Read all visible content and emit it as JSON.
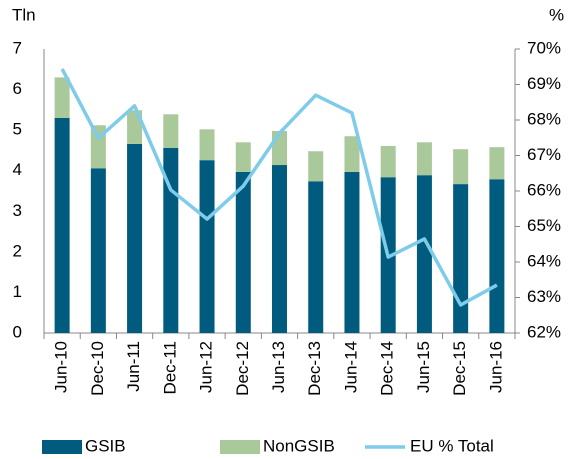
{
  "chart_data": {
    "type": "bar",
    "stacked": true,
    "y_label": "Tln",
    "y2_label": "%",
    "categories": [
      "Jun-10",
      "Dec-10",
      "Jun-11",
      "Dec-11",
      "Jun-12",
      "Dec-12",
      "Jun-13",
      "Dec-13",
      "Jun-14",
      "Dec-14",
      "Jun-15",
      "Dec-15",
      "Jun-16"
    ],
    "series": [
      {
        "name": "GSIB",
        "type": "bar",
        "color": "#005b7f",
        "values": [
          5.3,
          4.06,
          4.66,
          4.56,
          4.26,
          3.97,
          4.14,
          3.74,
          3.97,
          3.84,
          3.89,
          3.67,
          3.79
        ]
      },
      {
        "name": "NonGSIB",
        "type": "bar",
        "color": "#a9c99a",
        "values": [
          1.0,
          1.06,
          0.83,
          0.83,
          0.76,
          0.73,
          0.84,
          0.74,
          0.88,
          0.77,
          0.81,
          0.86,
          0.79
        ]
      },
      {
        "name": "EU % Total",
        "type": "line",
        "axis": "y2",
        "color": "#7fcbea",
        "values": [
          69.44,
          67.49,
          68.4,
          66.03,
          65.21,
          66.14,
          67.63,
          68.7,
          68.2,
          64.14,
          64.65,
          62.79,
          63.35
        ]
      }
    ],
    "ylim": [
      0,
      7
    ],
    "yticks": [
      0,
      1,
      2,
      3,
      4,
      5,
      6,
      7
    ],
    "y2lim": [
      62,
      70
    ],
    "y2ticks": [
      {
        "value": 62,
        "label": "62%"
      },
      {
        "value": 63,
        "label": "63%"
      },
      {
        "value": 64,
        "label": "64%"
      },
      {
        "value": 65,
        "label": "65%"
      },
      {
        "value": 66,
        "label": "66%"
      },
      {
        "value": 67,
        "label": "67%"
      },
      {
        "value": 68,
        "label": "68%"
      },
      {
        "value": 69,
        "label": "69%"
      },
      {
        "value": 70,
        "label": "70%"
      }
    ],
    "grid": false,
    "legend": "bottom"
  }
}
